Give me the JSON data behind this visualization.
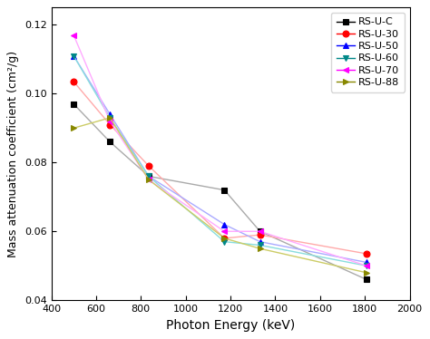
{
  "series": [
    {
      "label": "RS-U-C",
      "color": "#000000",
      "line_color": "#aaaaaa",
      "marker": "s",
      "x": [
        500,
        662,
        835,
        1173,
        1332,
        1808
      ],
      "y": [
        0.097,
        0.086,
        0.076,
        0.072,
        0.06,
        0.046
      ]
    },
    {
      "label": "RS-U-30",
      "color": "#ff0000",
      "line_color": "#ffaaaa",
      "marker": "o",
      "x": [
        500,
        662,
        835,
        1173,
        1332,
        1808
      ],
      "y": [
        0.1035,
        0.091,
        0.079,
        0.058,
        0.059,
        0.0535
      ]
    },
    {
      "label": "RS-U-50",
      "color": "#0000ff",
      "line_color": "#aaaaff",
      "marker": "^",
      "x": [
        500,
        662,
        835,
        1173,
        1332,
        1808
      ],
      "y": [
        0.111,
        0.094,
        0.076,
        0.062,
        0.057,
        0.051
      ]
    },
    {
      "label": "RS-U-60",
      "color": "#008888",
      "line_color": "#88dddd",
      "marker": "v",
      "x": [
        500,
        662,
        835,
        1173,
        1332,
        1808
      ],
      "y": [
        0.111,
        0.093,
        0.076,
        0.057,
        0.056,
        0.05
      ]
    },
    {
      "label": "RS-U-70",
      "color": "#ff00ff",
      "line_color": "#ffaaff",
      "marker": "<",
      "x": [
        500,
        662,
        835,
        1173,
        1332,
        1808
      ],
      "y": [
        0.117,
        0.092,
        0.075,
        0.06,
        0.06,
        0.05
      ]
    },
    {
      "label": "RS-U-88",
      "color": "#888800",
      "line_color": "#cccc66",
      "marker": ">",
      "x": [
        500,
        662,
        835,
        1173,
        1332,
        1808
      ],
      "y": [
        0.09,
        0.093,
        0.075,
        0.058,
        0.055,
        0.048
      ]
    }
  ],
  "xlabel": "Photon Energy (keV)",
  "ylabel": "Mass attenuation coefficient (cm²/g)",
  "xlim": [
    400,
    2000
  ],
  "ylim": [
    0.04,
    0.125
  ],
  "xticks": [
    400,
    600,
    800,
    1000,
    1200,
    1400,
    1600,
    1800,
    2000
  ],
  "yticks": [
    0.04,
    0.06,
    0.08,
    0.1,
    0.12
  ],
  "legend_loc": "upper right",
  "linewidth": 1.0,
  "markersize": 5
}
